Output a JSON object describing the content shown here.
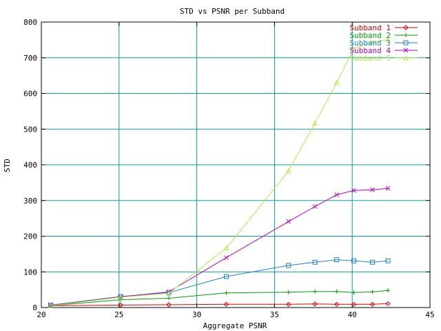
{
  "chart_data": {
    "type": "line",
    "title": "STD vs PSNR per Subband",
    "xlabel": "Aggregate PSNR",
    "ylabel": "STD",
    "xlim": [
      20,
      45
    ],
    "ylim": [
      0,
      800
    ],
    "xticks": [
      20,
      25,
      30,
      35,
      40,
      45
    ],
    "yticks": [
      0,
      100,
      200,
      300,
      400,
      500,
      600,
      700,
      800
    ],
    "grid": true,
    "grid_color": "#00a0a0",
    "legend_position": "top-right",
    "series": [
      {
        "name": "Subband 1",
        "color": "#e00000",
        "marker": "diamond",
        "x": [
          20.6,
          25.1,
          28.2,
          31.9,
          35.9,
          37.6,
          39.0,
          40.1,
          41.3,
          42.3
        ],
        "y": [
          5,
          7,
          8,
          9,
          9,
          10,
          9,
          9,
          9,
          11
        ]
      },
      {
        "name": "Subband 2",
        "color": "#00a000",
        "marker": "plus",
        "x": [
          20.6,
          25.1,
          28.2,
          31.9,
          35.9,
          37.6,
          39.0,
          40.1,
          41.3,
          42.3
        ],
        "y": [
          5,
          22,
          26,
          41,
          43,
          45,
          45,
          42,
          44,
          48
        ]
      },
      {
        "name": "Subband 3",
        "color": "#1e7fd0",
        "marker": "square",
        "x": [
          20.6,
          25.1,
          28.2,
          31.9,
          35.9,
          37.6,
          39.0,
          40.1,
          41.3,
          42.3
        ],
        "y": [
          7,
          31,
          42,
          87,
          118,
          127,
          134,
          131,
          127,
          131
        ]
      },
      {
        "name": "Subband 4",
        "color": "#b000c8",
        "marker": "x",
        "x": [
          20.6,
          25.1,
          28.2,
          31.9,
          35.9,
          37.6,
          39.0,
          40.1,
          41.3,
          42.3
        ],
        "y": [
          6,
          30,
          44,
          140,
          241,
          283,
          316,
          328,
          330,
          334
        ]
      },
      {
        "name": "Subband 5",
        "color": "#b8e848",
        "marker": "triangle",
        "x": [
          20.6,
          25.1,
          28.2,
          31.9,
          35.9,
          37.6,
          39.0,
          40.1,
          41.3,
          42.3
        ],
        "y": [
          5,
          29,
          40,
          167,
          383,
          517,
          630,
          725,
          745,
          750
        ]
      }
    ]
  }
}
